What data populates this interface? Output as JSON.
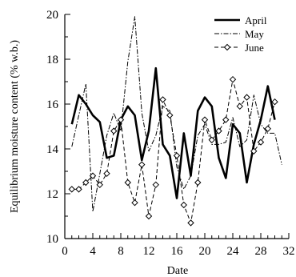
{
  "chart_data": {
    "type": "line",
    "title": "",
    "xlabel": "Date",
    "ylabel": "Equilibrium moisture content  (% w.b.)",
    "xlim": [
      0,
      32
    ],
    "ylim": [
      10,
      20
    ],
    "x_ticks": [
      0,
      4,
      8,
      12,
      16,
      20,
      24,
      28,
      32
    ],
    "y_ticks": [
      10,
      12,
      14,
      16,
      18,
      20
    ],
    "grid": false,
    "legend_position": "top-right",
    "series": [
      {
        "name": "April",
        "color": "#000000",
        "style": "solid-thick",
        "x": [
          1,
          2,
          3,
          4,
          5,
          6,
          7,
          8,
          9,
          10,
          11,
          12,
          13,
          14,
          15,
          16,
          17,
          18,
          19,
          20,
          21,
          22,
          23,
          24,
          25,
          26,
          27,
          28,
          29,
          30
        ],
        "y": [
          15.1,
          16.4,
          16.0,
          15.5,
          15.2,
          13.6,
          13.7,
          15.3,
          15.9,
          15.5,
          13.5,
          14.8,
          17.6,
          14.2,
          13.7,
          11.8,
          14.7,
          12.8,
          15.7,
          16.3,
          15.9,
          13.6,
          12.7,
          15.1,
          14.7,
          12.5,
          14.2,
          15.3,
          16.8,
          15.3
        ]
      },
      {
        "name": "May",
        "color": "#000000",
        "style": "dash-dot",
        "x": [
          1,
          2,
          3,
          4,
          5,
          6,
          7,
          8,
          9,
          10,
          11,
          12,
          13,
          14,
          15,
          16,
          17,
          18,
          19,
          20,
          21,
          22,
          23,
          24,
          25,
          26,
          27,
          28,
          29,
          30,
          31
        ],
        "y": [
          14.1,
          15.5,
          16.9,
          11.2,
          12.9,
          14.6,
          15.6,
          14.8,
          17.9,
          19.9,
          15.6,
          13.9,
          14.6,
          15.9,
          15.7,
          13.2,
          12.2,
          12.8,
          14.6,
          15.1,
          14.2,
          14.2,
          14.3,
          15.4,
          14.1,
          14.4,
          16.4,
          15.1,
          14.7,
          14.7,
          13.3
        ]
      },
      {
        "name": "June",
        "color": "#000000",
        "style": "dashed-diamond",
        "x": [
          1,
          2,
          3,
          4,
          5,
          6,
          7,
          8,
          9,
          10,
          11,
          12,
          13,
          14,
          15,
          16,
          17,
          18,
          19,
          20,
          21,
          22,
          23,
          24,
          25,
          26,
          27,
          28,
          29,
          30
        ],
        "y": [
          12.2,
          12.2,
          12.5,
          12.8,
          12.4,
          12.9,
          14.8,
          15.3,
          12.5,
          11.6,
          13.3,
          11.0,
          12.4,
          16.2,
          15.5,
          13.7,
          11.5,
          10.7,
          12.5,
          15.3,
          14.4,
          14.8,
          15.3,
          17.1,
          15.9,
          16.3,
          13.9,
          14.3,
          14.9,
          16.1
        ]
      }
    ]
  }
}
